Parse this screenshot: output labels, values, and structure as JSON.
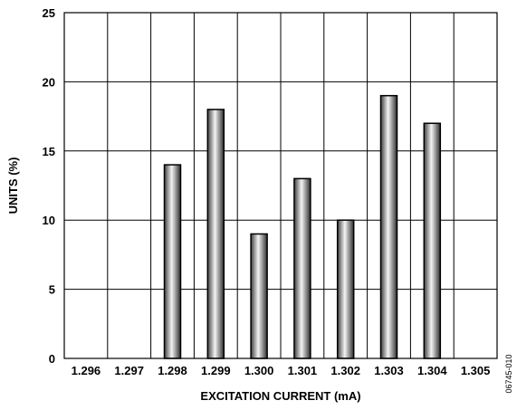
{
  "chart_data": {
    "type": "bar",
    "categories": [
      "1.296",
      "1.297",
      "1.298",
      "1.299",
      "1.300",
      "1.301",
      "1.302",
      "1.303",
      "1.304",
      "1.305"
    ],
    "values": [
      0,
      0,
      14,
      18,
      9,
      13,
      10,
      19,
      17,
      0
    ],
    "xlabel": "EXCITATION CURRENT (mA)",
    "ylabel": "UNITS (%)",
    "ylim": [
      0,
      25
    ],
    "yticks": [
      0,
      5,
      10,
      15,
      20,
      25
    ],
    "grid": true,
    "bar_style": "gray cylindrical gradient with black outline",
    "colors": {
      "bar_dark": "#4a4a4a",
      "bar_light": "#f2f2f2",
      "grid": "#000000"
    }
  },
  "figure_id": "06745-010"
}
